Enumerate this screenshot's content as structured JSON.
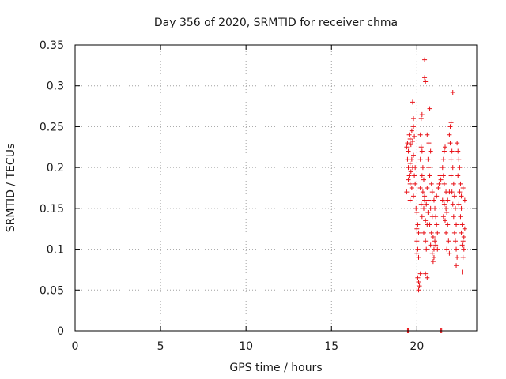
{
  "chart_data": {
    "type": "scatter",
    "title": "Day 356 of 2020, SRMTID for receiver chma",
    "xlabel": "GPS time / hours",
    "ylabel": "SRMTID / TECUs",
    "xlim": [
      0,
      23.5
    ],
    "ylim": [
      0,
      0.35
    ],
    "x_ticks": [
      0,
      5,
      10,
      15,
      20
    ],
    "x_tick_labels": [
      "0",
      "5",
      "10",
      "15",
      "20"
    ],
    "y_ticks": [
      0,
      0.05,
      0.1,
      0.15,
      0.2,
      0.25,
      0.3,
      0.35
    ],
    "y_tick_labels": [
      "0",
      "0.05",
      "0.1",
      "0.15",
      "0.2",
      "0.25",
      "0.3",
      "0.35"
    ],
    "grid": true,
    "marker_color": "#e8141a",
    "series": [
      {
        "marker": "plus",
        "points": [
          [
            19.45,
            0.0
          ],
          [
            19.5,
            0.0
          ],
          [
            21.4,
            0.0
          ],
          [
            21.45,
            0.0
          ],
          [
            19.4,
            0.225
          ],
          [
            19.45,
            0.23
          ],
          [
            19.5,
            0.22
          ],
          [
            19.55,
            0.24
          ],
          [
            19.6,
            0.235
          ],
          [
            19.65,
            0.228
          ],
          [
            19.7,
            0.245
          ],
          [
            19.75,
            0.232
          ],
          [
            19.8,
            0.25
          ],
          [
            19.85,
            0.238
          ],
          [
            19.45,
            0.21
          ],
          [
            19.5,
            0.2
          ],
          [
            19.55,
            0.19
          ],
          [
            19.6,
            0.205
          ],
          [
            19.65,
            0.195
          ],
          [
            19.7,
            0.21
          ],
          [
            19.75,
            0.2
          ],
          [
            19.8,
            0.215
          ],
          [
            19.85,
            0.19
          ],
          [
            19.9,
            0.2
          ],
          [
            19.5,
            0.185
          ],
          [
            19.6,
            0.18
          ],
          [
            19.7,
            0.175
          ],
          [
            19.75,
            0.28
          ],
          [
            19.8,
            0.26
          ],
          [
            19.9,
            0.18
          ],
          [
            19.4,
            0.17
          ],
          [
            19.6,
            0.16
          ],
          [
            19.8,
            0.165
          ],
          [
            19.95,
            0.15
          ],
          [
            20.0,
            0.145
          ],
          [
            20.05,
            0.13
          ],
          [
            20.0,
            0.125
          ],
          [
            20.1,
            0.12
          ],
          [
            20.0,
            0.11
          ],
          [
            20.05,
            0.1
          ],
          [
            20.0,
            0.095
          ],
          [
            20.1,
            0.09
          ],
          [
            20.05,
            0.065
          ],
          [
            20.1,
            0.06
          ],
          [
            20.15,
            0.055
          ],
          [
            20.1,
            0.05
          ],
          [
            20.2,
            0.07
          ],
          [
            20.2,
            0.24
          ],
          [
            20.25,
            0.26
          ],
          [
            20.3,
            0.265
          ],
          [
            20.25,
            0.225
          ],
          [
            20.3,
            0.22
          ],
          [
            20.2,
            0.21
          ],
          [
            20.35,
            0.2
          ],
          [
            20.3,
            0.19
          ],
          [
            20.4,
            0.185
          ],
          [
            20.2,
            0.175
          ],
          [
            20.35,
            0.17
          ],
          [
            20.45,
            0.165
          ],
          [
            20.25,
            0.155
          ],
          [
            20.4,
            0.15
          ],
          [
            20.3,
            0.14
          ],
          [
            20.5,
            0.135
          ],
          [
            20.45,
            0.16
          ],
          [
            20.45,
            0.31
          ],
          [
            20.5,
            0.305
          ],
          [
            20.45,
            0.332
          ],
          [
            20.4,
            0.12
          ],
          [
            20.5,
            0.11
          ],
          [
            20.55,
            0.1
          ],
          [
            20.6,
            0.13
          ],
          [
            20.5,
            0.07
          ],
          [
            20.6,
            0.065
          ],
          [
            20.6,
            0.24
          ],
          [
            20.7,
            0.23
          ],
          [
            20.75,
            0.272
          ],
          [
            20.65,
            0.21
          ],
          [
            20.7,
            0.2
          ],
          [
            20.8,
            0.22
          ],
          [
            20.75,
            0.19
          ],
          [
            20.85,
            0.18
          ],
          [
            20.9,
            0.17
          ],
          [
            20.7,
            0.16
          ],
          [
            20.8,
            0.15
          ],
          [
            20.9,
            0.14
          ],
          [
            20.75,
            0.13
          ],
          [
            20.85,
            0.12
          ],
          [
            20.95,
            0.115
          ],
          [
            21.0,
            0.1
          ],
          [
            20.9,
            0.095
          ],
          [
            21.0,
            0.09
          ],
          [
            20.95,
            0.085
          ],
          [
            20.8,
            0.105
          ],
          [
            21.05,
            0.11
          ],
          [
            20.65,
            0.145
          ],
          [
            20.55,
            0.155
          ],
          [
            20.6,
            0.175
          ],
          [
            21.0,
            0.16
          ],
          [
            21.05,
            0.15
          ],
          [
            21.1,
            0.14
          ],
          [
            21.15,
            0.13
          ],
          [
            21.2,
            0.12
          ],
          [
            21.1,
            0.105
          ],
          [
            21.2,
            0.1
          ],
          [
            21.15,
            0.165
          ],
          [
            21.25,
            0.175
          ],
          [
            21.3,
            0.18
          ],
          [
            21.35,
            0.19
          ],
          [
            21.4,
            0.185
          ],
          [
            21.5,
            0.2
          ],
          [
            21.55,
            0.21
          ],
          [
            21.6,
            0.22
          ],
          [
            21.65,
            0.225
          ],
          [
            21.55,
            0.19
          ],
          [
            21.6,
            0.18
          ],
          [
            21.7,
            0.17
          ],
          [
            21.5,
            0.16
          ],
          [
            21.6,
            0.155
          ],
          [
            21.7,
            0.15
          ],
          [
            21.75,
            0.145
          ],
          [
            21.55,
            0.14
          ],
          [
            21.65,
            0.135
          ],
          [
            21.8,
            0.13
          ],
          [
            21.7,
            0.12
          ],
          [
            21.85,
            0.11
          ],
          [
            21.75,
            0.1
          ],
          [
            21.9,
            0.095
          ],
          [
            21.8,
            0.16
          ],
          [
            21.9,
            0.17
          ],
          [
            21.9,
            0.24
          ],
          [
            21.95,
            0.25
          ],
          [
            22.0,
            0.255
          ],
          [
            21.95,
            0.23
          ],
          [
            22.05,
            0.22
          ],
          [
            22.0,
            0.21
          ],
          [
            22.1,
            0.2
          ],
          [
            22.0,
            0.19
          ],
          [
            22.15,
            0.18
          ],
          [
            22.05,
            0.17
          ],
          [
            22.2,
            0.165
          ],
          [
            22.1,
            0.155
          ],
          [
            22.25,
            0.15
          ],
          [
            22.15,
            0.14
          ],
          [
            22.3,
            0.13
          ],
          [
            22.2,
            0.12
          ],
          [
            22.25,
            0.11
          ],
          [
            22.3,
            0.1
          ],
          [
            22.35,
            0.09
          ],
          [
            22.3,
            0.08
          ],
          [
            22.1,
            0.292
          ],
          [
            22.35,
            0.23
          ],
          [
            22.4,
            0.22
          ],
          [
            22.45,
            0.21
          ],
          [
            22.5,
            0.2
          ],
          [
            22.4,
            0.19
          ],
          [
            22.55,
            0.18
          ],
          [
            22.5,
            0.17
          ],
          [
            22.6,
            0.165
          ],
          [
            22.45,
            0.155
          ],
          [
            22.6,
            0.15
          ],
          [
            22.55,
            0.14
          ],
          [
            22.65,
            0.13
          ],
          [
            22.6,
            0.12
          ],
          [
            22.7,
            0.11
          ],
          [
            22.65,
            0.105
          ],
          [
            22.75,
            0.1
          ],
          [
            22.7,
            0.09
          ],
          [
            22.65,
            0.072
          ],
          [
            22.75,
            0.115
          ],
          [
            22.8,
            0.125
          ],
          [
            22.7,
            0.175
          ],
          [
            22.8,
            0.16
          ]
        ]
      }
    ]
  }
}
